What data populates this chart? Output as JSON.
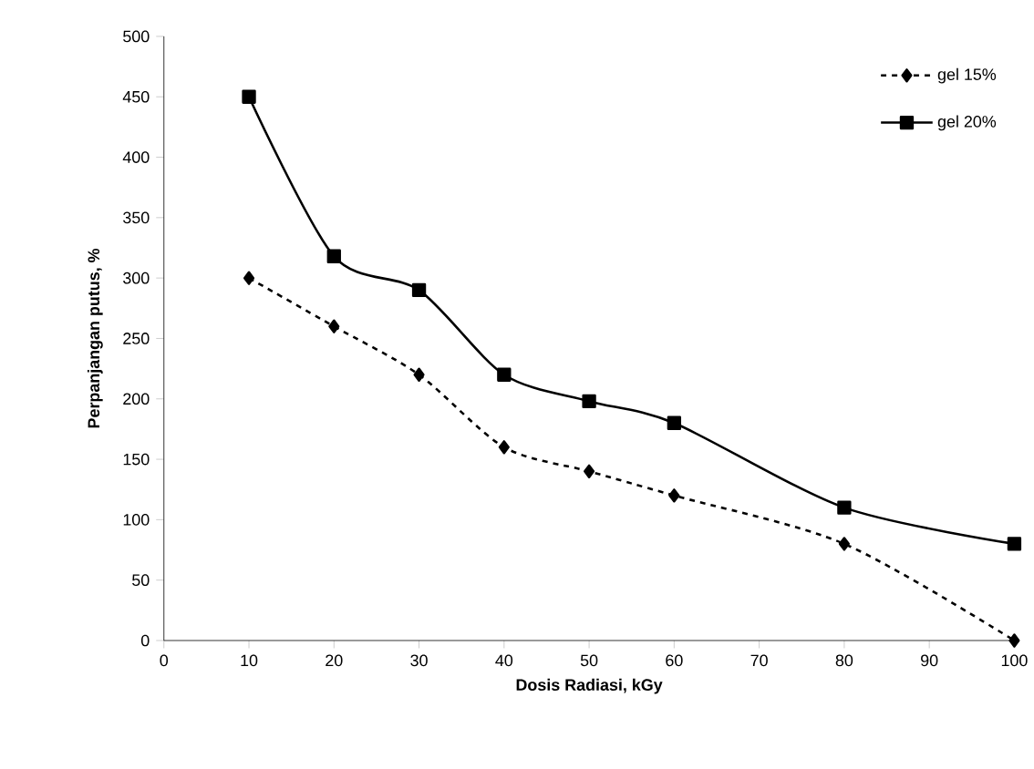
{
  "chart_data": {
    "type": "line",
    "xlabel": "Dosis Radiasi, kGy",
    "ylabel": "Perpanjangan putus, %",
    "x": [
      10,
      20,
      30,
      40,
      50,
      60,
      80,
      100
    ],
    "series": [
      {
        "name": "gel 15%",
        "color": "#000000",
        "values": [
          300,
          260,
          220,
          160,
          140,
          120,
          80,
          0
        ],
        "marker": "diamond",
        "line_style": "dashed"
      },
      {
        "name": "gel 20%",
        "color": "#000000",
        "values": [
          450,
          318,
          290,
          220,
          198,
          180,
          110,
          80
        ],
        "marker": "square",
        "line_style": "solid"
      }
    ],
    "xlim": [
      0,
      100
    ],
    "xticks": [
      0,
      10,
      20,
      30,
      40,
      50,
      60,
      70,
      80,
      90,
      100
    ],
    "ylim": [
      0,
      500
    ],
    "yticks": [
      0,
      50,
      100,
      150,
      200,
      250,
      300,
      350,
      400,
      450,
      500
    ],
    "grid": false,
    "legend": "top right"
  }
}
